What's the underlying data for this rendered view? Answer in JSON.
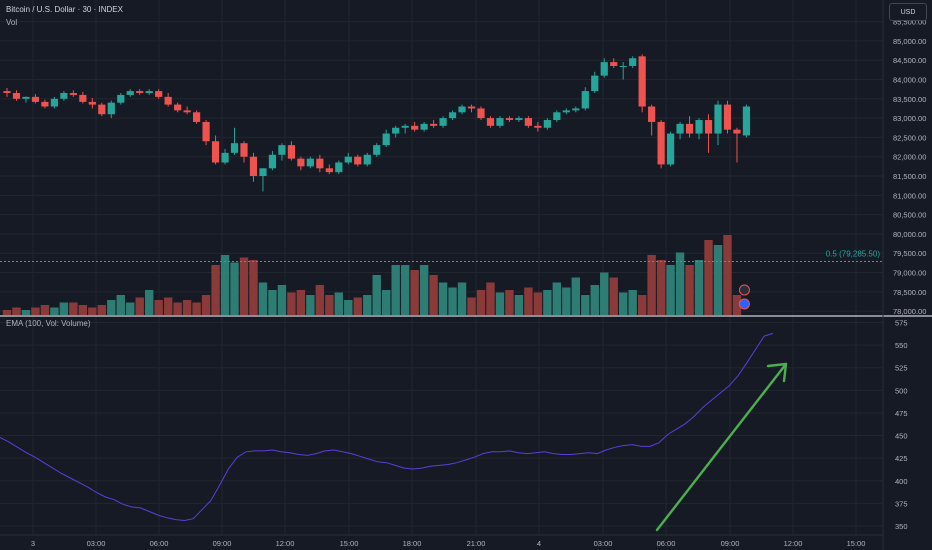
{
  "header": {
    "title": "Bitcoin / U.S. Dollar · 30 · INDEX",
    "volume_label": "Vol",
    "currency": "USD",
    "indicator_title": "EMA (100, Vol: Volume)"
  },
  "colors": {
    "background": "#161a25",
    "up": "#26a69a",
    "down": "#ef5350",
    "vol_up": "#2e7d74",
    "vol_down": "#8b3a3a",
    "ema": "#5a3fd9",
    "fib": "#2aa7a0",
    "arrow": "#4caf50",
    "grid": "#22262f",
    "axis_text": "#b2b5be"
  },
  "chart_data": [
    {
      "type": "candlestick",
      "title": "Bitcoin / U.S. Dollar · 30 · INDEX",
      "x_tick_labels": [
        "3",
        "03:00",
        "06:00",
        "09:00",
        "12:00",
        "15:00",
        "18:00",
        "21:00",
        "4",
        "03:00",
        "06:00",
        "09:00",
        "12:00",
        "15:00"
      ],
      "y_tick_labels": [
        "78,000.00",
        "78,500.00",
        "79,000.00",
        "79,500.00",
        "80,000.00",
        "80,500.00",
        "81,000.00",
        "81,500.00",
        "82,000.00",
        "82,500.00",
        "83,000.00",
        "83,500.00",
        "84,000.00",
        "84,500.00",
        "85,000.00",
        "85,500.00"
      ],
      "ylim": [
        77900,
        85800
      ],
      "fib_level": {
        "label": "0.5 (79,285.50)",
        "value": 79285.5
      },
      "candles": [
        {
          "o": 83700,
          "h": 83780,
          "l": 83550,
          "c": 83650
        },
        {
          "o": 83650,
          "h": 83720,
          "l": 83450,
          "c": 83500
        },
        {
          "o": 83500,
          "h": 83560,
          "l": 83400,
          "c": 83550
        },
        {
          "o": 83550,
          "h": 83620,
          "l": 83380,
          "c": 83420
        },
        {
          "o": 83420,
          "h": 83480,
          "l": 83250,
          "c": 83300
        },
        {
          "o": 83300,
          "h": 83550,
          "l": 83250,
          "c": 83500
        },
        {
          "o": 83500,
          "h": 83700,
          "l": 83450,
          "c": 83650
        },
        {
          "o": 83650,
          "h": 83720,
          "l": 83550,
          "c": 83600
        },
        {
          "o": 83600,
          "h": 83680,
          "l": 83380,
          "c": 83420
        },
        {
          "o": 83420,
          "h": 83520,
          "l": 83250,
          "c": 83350
        },
        {
          "o": 83350,
          "h": 83400,
          "l": 83050,
          "c": 83100
        },
        {
          "o": 83100,
          "h": 83450,
          "l": 83000,
          "c": 83400
        },
        {
          "o": 83400,
          "h": 83650,
          "l": 83350,
          "c": 83600
        },
        {
          "o": 83600,
          "h": 83750,
          "l": 83550,
          "c": 83700
        },
        {
          "o": 83700,
          "h": 83750,
          "l": 83600,
          "c": 83650
        },
        {
          "o": 83650,
          "h": 83750,
          "l": 83600,
          "c": 83700
        },
        {
          "o": 83700,
          "h": 83750,
          "l": 83500,
          "c": 83550
        },
        {
          "o": 83550,
          "h": 83650,
          "l": 83300,
          "c": 83350
        },
        {
          "o": 83350,
          "h": 83400,
          "l": 83150,
          "c": 83200
        },
        {
          "o": 83200,
          "h": 83300,
          "l": 83100,
          "c": 83150
        },
        {
          "o": 83150,
          "h": 83200,
          "l": 82850,
          "c": 82900
        },
        {
          "o": 82900,
          "h": 82950,
          "l": 82300,
          "c": 82400
        },
        {
          "o": 82400,
          "h": 82550,
          "l": 81800,
          "c": 81850
        },
        {
          "o": 81850,
          "h": 82200,
          "l": 81800,
          "c": 82100
        },
        {
          "o": 82100,
          "h": 82750,
          "l": 82050,
          "c": 82350
        },
        {
          "o": 82350,
          "h": 82400,
          "l": 81850,
          "c": 82000
        },
        {
          "o": 82000,
          "h": 82100,
          "l": 81350,
          "c": 81500
        },
        {
          "o": 81500,
          "h": 81700,
          "l": 81100,
          "c": 81700
        },
        {
          "o": 81700,
          "h": 82150,
          "l": 81650,
          "c": 82050
        },
        {
          "o": 82050,
          "h": 82350,
          "l": 81900,
          "c": 82300
        },
        {
          "o": 82300,
          "h": 82400,
          "l": 81900,
          "c": 81950
        },
        {
          "o": 81950,
          "h": 82000,
          "l": 81650,
          "c": 81750
        },
        {
          "o": 81750,
          "h": 82000,
          "l": 81700,
          "c": 81950
        },
        {
          "o": 81950,
          "h": 82050,
          "l": 81600,
          "c": 81700
        },
        {
          "o": 81700,
          "h": 81800,
          "l": 81550,
          "c": 81600
        },
        {
          "o": 81600,
          "h": 81900,
          "l": 81550,
          "c": 81850
        },
        {
          "o": 81850,
          "h": 82100,
          "l": 81800,
          "c": 82000
        },
        {
          "o": 82000,
          "h": 82050,
          "l": 81750,
          "c": 81800
        },
        {
          "o": 81800,
          "h": 82100,
          "l": 81750,
          "c": 82050
        },
        {
          "o": 82050,
          "h": 82350,
          "l": 82000,
          "c": 82300
        },
        {
          "o": 82300,
          "h": 82700,
          "l": 82250,
          "c": 82600
        },
        {
          "o": 82600,
          "h": 82800,
          "l": 82500,
          "c": 82750
        },
        {
          "o": 82750,
          "h": 82850,
          "l": 82600,
          "c": 82800
        },
        {
          "o": 82800,
          "h": 82900,
          "l": 82650,
          "c": 82700
        },
        {
          "o": 82700,
          "h": 82900,
          "l": 82650,
          "c": 82850
        },
        {
          "o": 82850,
          "h": 82950,
          "l": 82750,
          "c": 82800
        },
        {
          "o": 82800,
          "h": 83050,
          "l": 82750,
          "c": 83000
        },
        {
          "o": 83000,
          "h": 83200,
          "l": 82950,
          "c": 83150
        },
        {
          "o": 83150,
          "h": 83350,
          "l": 83100,
          "c": 83300
        },
        {
          "o": 83300,
          "h": 83350,
          "l": 83150,
          "c": 83250
        },
        {
          "o": 83250,
          "h": 83300,
          "l": 82950,
          "c": 83000
        },
        {
          "o": 83000,
          "h": 83050,
          "l": 82750,
          "c": 82800
        },
        {
          "o": 82800,
          "h": 83050,
          "l": 82750,
          "c": 83000
        },
        {
          "o": 83000,
          "h": 83050,
          "l": 82900,
          "c": 82950
        },
        {
          "o": 82950,
          "h": 83050,
          "l": 82900,
          "c": 83000
        },
        {
          "o": 83000,
          "h": 83050,
          "l": 82750,
          "c": 82800
        },
        {
          "o": 82800,
          "h": 82900,
          "l": 82650,
          "c": 82750
        },
        {
          "o": 82750,
          "h": 83000,
          "l": 82700,
          "c": 82950
        },
        {
          "o": 82950,
          "h": 83200,
          "l": 82900,
          "c": 83150
        },
        {
          "o": 83150,
          "h": 83250,
          "l": 83100,
          "c": 83200
        },
        {
          "o": 83200,
          "h": 83300,
          "l": 83150,
          "c": 83250
        },
        {
          "o": 83250,
          "h": 83800,
          "l": 83200,
          "c": 83700
        },
        {
          "o": 83700,
          "h": 84200,
          "l": 83650,
          "c": 84100
        },
        {
          "o": 84100,
          "h": 84550,
          "l": 84050,
          "c": 84450
        },
        {
          "o": 84450,
          "h": 84550,
          "l": 84300,
          "c": 84350
        },
        {
          "o": 84350,
          "h": 84450,
          "l": 84000,
          "c": 84350
        },
        {
          "o": 84350,
          "h": 84600,
          "l": 84300,
          "c": 84550
        },
        {
          "o": 84600,
          "h": 84650,
          "l": 83150,
          "c": 83300
        },
        {
          "o": 83300,
          "h": 83350,
          "l": 82550,
          "c": 82900
        },
        {
          "o": 82900,
          "h": 82950,
          "l": 81700,
          "c": 81800
        },
        {
          "o": 81800,
          "h": 82650,
          "l": 81750,
          "c": 82600
        },
        {
          "o": 82600,
          "h": 82900,
          "l": 82450,
          "c": 82850
        },
        {
          "o": 82850,
          "h": 83050,
          "l": 82500,
          "c": 82600
        },
        {
          "o": 82600,
          "h": 83000,
          "l": 82450,
          "c": 82950
        },
        {
          "o": 82950,
          "h": 83100,
          "l": 82100,
          "c": 82600
        },
        {
          "o": 82600,
          "h": 83450,
          "l": 82300,
          "c": 83350
        },
        {
          "o": 83350,
          "h": 83450,
          "l": 82600,
          "c": 82700
        },
        {
          "o": 82700,
          "h": 82750,
          "l": 81850,
          "c": 82600
        },
        {
          "o": 82550,
          "h": 83350,
          "l": 82500,
          "c": 83300
        }
      ],
      "volumes": [
        2,
        3,
        2,
        3,
        4,
        3,
        5,
        5,
        4,
        3,
        4,
        6,
        8,
        5,
        7,
        10,
        6,
        7,
        5,
        6,
        5,
        8,
        20,
        24,
        21,
        23,
        22,
        13,
        10,
        12,
        9,
        10,
        8,
        12,
        8,
        9,
        6,
        7,
        8,
        16,
        10,
        20,
        20,
        18,
        20,
        16,
        13,
        11,
        13,
        7,
        10,
        13,
        9,
        10,
        8,
        11,
        9,
        10,
        13,
        11,
        15,
        8,
        12,
        17,
        15,
        9,
        10,
        8,
        24,
        22,
        20,
        25,
        20,
        22,
        30,
        28,
        32,
        8
      ]
    },
    {
      "type": "line",
      "title": "EMA (100, Vol: Volume)",
      "series": [
        {
          "name": "EMA (100, Vol: Volume)",
          "values": [
            448,
            443,
            437,
            431,
            426,
            420,
            414,
            408,
            403,
            398,
            393,
            387,
            382,
            379,
            374,
            371,
            370,
            366,
            362,
            359,
            357,
            356,
            358,
            368,
            378,
            395,
            413,
            426,
            432,
            433,
            433,
            434,
            432,
            431,
            429,
            428,
            430,
            433,
            434,
            432,
            430,
            427,
            424,
            421,
            420,
            417,
            414,
            413,
            414,
            416,
            417,
            418,
            420,
            423,
            426,
            430,
            432,
            432,
            433,
            431,
            430,
            431,
            432,
            430,
            429,
            429,
            430,
            431,
            430,
            434,
            437,
            439,
            440,
            438,
            438,
            442,
            451,
            457,
            463,
            471,
            481,
            489,
            497,
            505,
            516,
            530,
            545,
            560,
            563
          ]
        }
      ],
      "y_tick_labels": [
        "350",
        "375",
        "400",
        "425",
        "450",
        "475",
        "500",
        "525",
        "550",
        "575"
      ],
      "ylim": [
        340,
        580
      ]
    }
  ]
}
